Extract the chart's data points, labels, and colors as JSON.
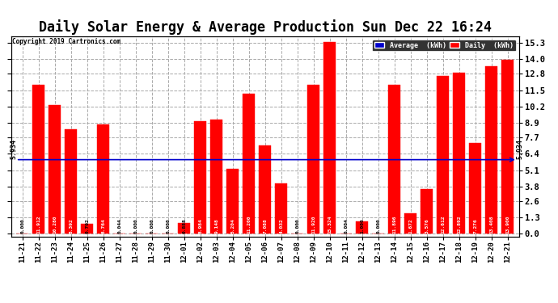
{
  "title": "Daily Solar Energy & Average Production Sun Dec 22 16:24",
  "copyright": "Copyright 2019 Cartronics.com",
  "categories": [
    "11-21",
    "11-22",
    "11-23",
    "11-24",
    "11-25",
    "11-26",
    "11-27",
    "11-28",
    "11-29",
    "11-30",
    "12-01",
    "12-02",
    "12-03",
    "12-04",
    "12-05",
    "12-06",
    "12-07",
    "12-08",
    "12-09",
    "12-10",
    "12-11",
    "12-12",
    "12-13",
    "12-14",
    "12-15",
    "12-16",
    "12-17",
    "12-18",
    "12-19",
    "12-20",
    "12-21"
  ],
  "values": [
    0.0,
    11.912,
    10.28,
    8.392,
    0.792,
    8.764,
    0.044,
    0.0,
    0.0,
    0.0,
    0.888,
    8.984,
    9.148,
    5.204,
    11.2,
    7.088,
    4.032,
    0.0,
    11.92,
    15.324,
    0.004,
    1.0,
    0.0,
    11.896,
    1.672,
    3.576,
    12.612,
    12.892,
    7.276,
    13.408,
    13.9
  ],
  "average": 5.934,
  "bar_color": "#ff0000",
  "avg_line_color": "#0000cc",
  "background_color": "#ffffff",
  "plot_background": "#ffffff",
  "yticks": [
    0.0,
    1.3,
    2.6,
    3.8,
    5.1,
    6.4,
    7.7,
    8.9,
    10.2,
    11.5,
    12.8,
    14.0,
    15.3
  ],
  "title_fontsize": 12,
  "avg_label": "5.934",
  "legend_avg_color": "#0000cc",
  "legend_daily_color": "#ff0000"
}
